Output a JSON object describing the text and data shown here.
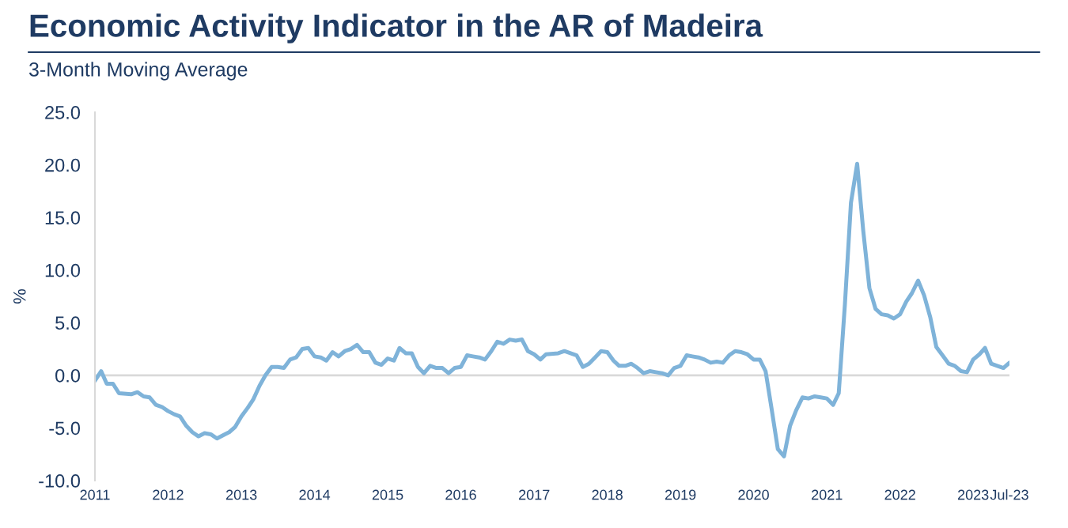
{
  "chart_data": {
    "type": "line",
    "title": "Economic Activity Indicator in the AR of Madeira",
    "subtitle": "3-Month Moving Average",
    "ylabel": "%",
    "x": [
      "2011-01",
      "2011-02",
      "2011-03",
      "2011-04",
      "2011-05",
      "2011-07",
      "2011-08",
      "2011-09",
      "2011-10",
      "2011-11",
      "2011-12",
      "2012-01",
      "2012-02",
      "2012-03",
      "2012-04",
      "2012-05",
      "2012-06",
      "2012-07",
      "2012-08",
      "2012-09",
      "2012-10",
      "2012-11",
      "2012-12",
      "2013-01",
      "2013-02",
      "2013-03",
      "2013-04",
      "2013-05",
      "2013-06",
      "2013-07",
      "2013-08",
      "2013-09",
      "2013-10",
      "2013-11",
      "2013-12",
      "2014-01",
      "2014-02",
      "2014-03",
      "2014-04",
      "2014-05",
      "2014-06",
      "2014-07",
      "2014-08",
      "2014-09",
      "2014-10",
      "2014-11",
      "2014-12",
      "2015-01",
      "2015-02",
      "2015-03",
      "2015-04",
      "2015-05",
      "2015-06",
      "2015-07",
      "2015-08",
      "2015-09",
      "2015-10",
      "2015-11",
      "2015-12",
      "2016-01",
      "2016-02",
      "2016-03",
      "2016-04",
      "2016-05",
      "2016-06",
      "2016-07",
      "2016-08",
      "2016-09",
      "2016-10",
      "2016-11",
      "2016-12",
      "2017-01",
      "2017-02",
      "2017-03",
      "2017-05",
      "2017-06",
      "2017-08",
      "2017-09",
      "2017-10",
      "2017-11",
      "2017-12",
      "2018-01",
      "2018-02",
      "2018-03",
      "2018-04",
      "2018-05",
      "2018-06",
      "2018-07",
      "2018-08",
      "2018-09",
      "2018-10",
      "2018-11",
      "2018-12",
      "2019-01",
      "2019-02",
      "2019-03",
      "2019-04",
      "2019-05",
      "2019-06",
      "2019-07",
      "2019-08",
      "2019-09",
      "2019-10",
      "2019-11",
      "2019-12",
      "2020-01",
      "2020-02",
      "2020-03",
      "2020-04",
      "2020-05",
      "2020-06",
      "2020-07",
      "2020-08",
      "2020-09",
      "2020-10",
      "2020-11",
      "2020-12",
      "2021-01",
      "2021-02",
      "2021-03",
      "2021-04",
      "2021-05",
      "2021-06",
      "2021-07",
      "2021-08",
      "2021-09",
      "2021-10",
      "2021-11",
      "2021-12",
      "2022-01",
      "2022-02",
      "2022-03",
      "2022-04",
      "2022-05",
      "2022-06",
      "2022-07",
      "2022-08",
      "2022-09",
      "2022-10",
      "2022-11",
      "2022-12",
      "2023-01",
      "2023-02",
      "2023-03",
      "2023-04",
      "2023-05",
      "2023-06",
      "2023-07"
    ],
    "series": [
      {
        "color": "#7fb3d9",
        "values": [
          -0.5,
          0.4,
          -0.8,
          -0.8,
          -1.7,
          -1.8,
          -1.6,
          -2.0,
          -2.1,
          -2.8,
          -3.0,
          -3.4,
          -3.7,
          -3.9,
          -4.8,
          -5.4,
          -5.8,
          -5.5,
          -5.6,
          -6.0,
          -5.7,
          -5.4,
          -4.9,
          -3.9,
          -3.1,
          -2.3,
          -1.0,
          0.0,
          0.8,
          0.8,
          0.7,
          1.5,
          1.7,
          2.5,
          2.6,
          1.8,
          1.7,
          1.4,
          2.2,
          1.8,
          2.3,
          2.5,
          2.9,
          2.2,
          2.2,
          1.2,
          1.0,
          1.6,
          1.4,
          2.6,
          2.1,
          2.1,
          0.8,
          0.2,
          0.9,
          0.7,
          0.7,
          0.2,
          0.7,
          0.8,
          1.9,
          1.8,
          1.7,
          1.5,
          2.3,
          3.2,
          3.0,
          3.4,
          3.3,
          3.4,
          2.3,
          2.0,
          1.5,
          2.0,
          2.1,
          2.3,
          1.9,
          0.8,
          1.1,
          1.7,
          2.3,
          2.2,
          1.4,
          0.9,
          0.9,
          1.1,
          0.7,
          0.2,
          0.4,
          0.3,
          0.2,
          0.0,
          0.7,
          0.9,
          1.9,
          1.8,
          1.7,
          1.5,
          1.2,
          1.3,
          1.2,
          1.9,
          2.3,
          2.2,
          2.0,
          1.5,
          1.5,
          0.4,
          -3.3,
          -7.0,
          -7.7,
          -4.8,
          -3.3,
          -2.1,
          -2.2,
          -2.0,
          -2.1,
          -2.2,
          -2.8,
          -1.7,
          6.8,
          16.4,
          20.1,
          13.8,
          8.3,
          6.3,
          5.8,
          5.7,
          5.4,
          5.8,
          7.0,
          7.8,
          9.0,
          7.6,
          5.5,
          2.7,
          1.9,
          1.1,
          0.9,
          0.4,
          0.3,
          1.5,
          2.0,
          2.6,
          1.1,
          0.9,
          0.7,
          1.2
        ]
      }
    ],
    "xlim": [
      "2011-01",
      "2023-07"
    ],
    "xticks": [
      {
        "value": "2011-01",
        "label": "2011"
      },
      {
        "value": "2012-01",
        "label": "2012"
      },
      {
        "value": "2013-01",
        "label": "2013"
      },
      {
        "value": "2014-01",
        "label": "2014"
      },
      {
        "value": "2015-01",
        "label": "2015"
      },
      {
        "value": "2016-01",
        "label": "2016"
      },
      {
        "value": "2017-01",
        "label": "2017"
      },
      {
        "value": "2018-01",
        "label": "2018"
      },
      {
        "value": "2019-01",
        "label": "2019"
      },
      {
        "value": "2020-01",
        "label": "2020"
      },
      {
        "value": "2021-01",
        "label": "2021"
      },
      {
        "value": "2022-01",
        "label": "2022"
      },
      {
        "value": "2023-01",
        "label": "2023"
      },
      {
        "value": "2023-07",
        "label": "Jul-23"
      }
    ],
    "ylim": [
      -10,
      25
    ],
    "yticks": [
      {
        "value": -10,
        "label": "-10.0"
      },
      {
        "value": -5,
        "label": "-5.0"
      },
      {
        "value": 0,
        "label": "0.0"
      },
      {
        "value": 5,
        "label": "5.0"
      },
      {
        "value": 10,
        "label": "10.0"
      },
      {
        "value": 15,
        "label": "15.0"
      },
      {
        "value": 20,
        "label": "20.0"
      },
      {
        "value": 25,
        "label": "25.0"
      }
    ],
    "ref_lines": [
      {
        "axis": "y",
        "value": 0,
        "color": "#d9d9d9"
      }
    ],
    "grid": false,
    "legend": false
  }
}
